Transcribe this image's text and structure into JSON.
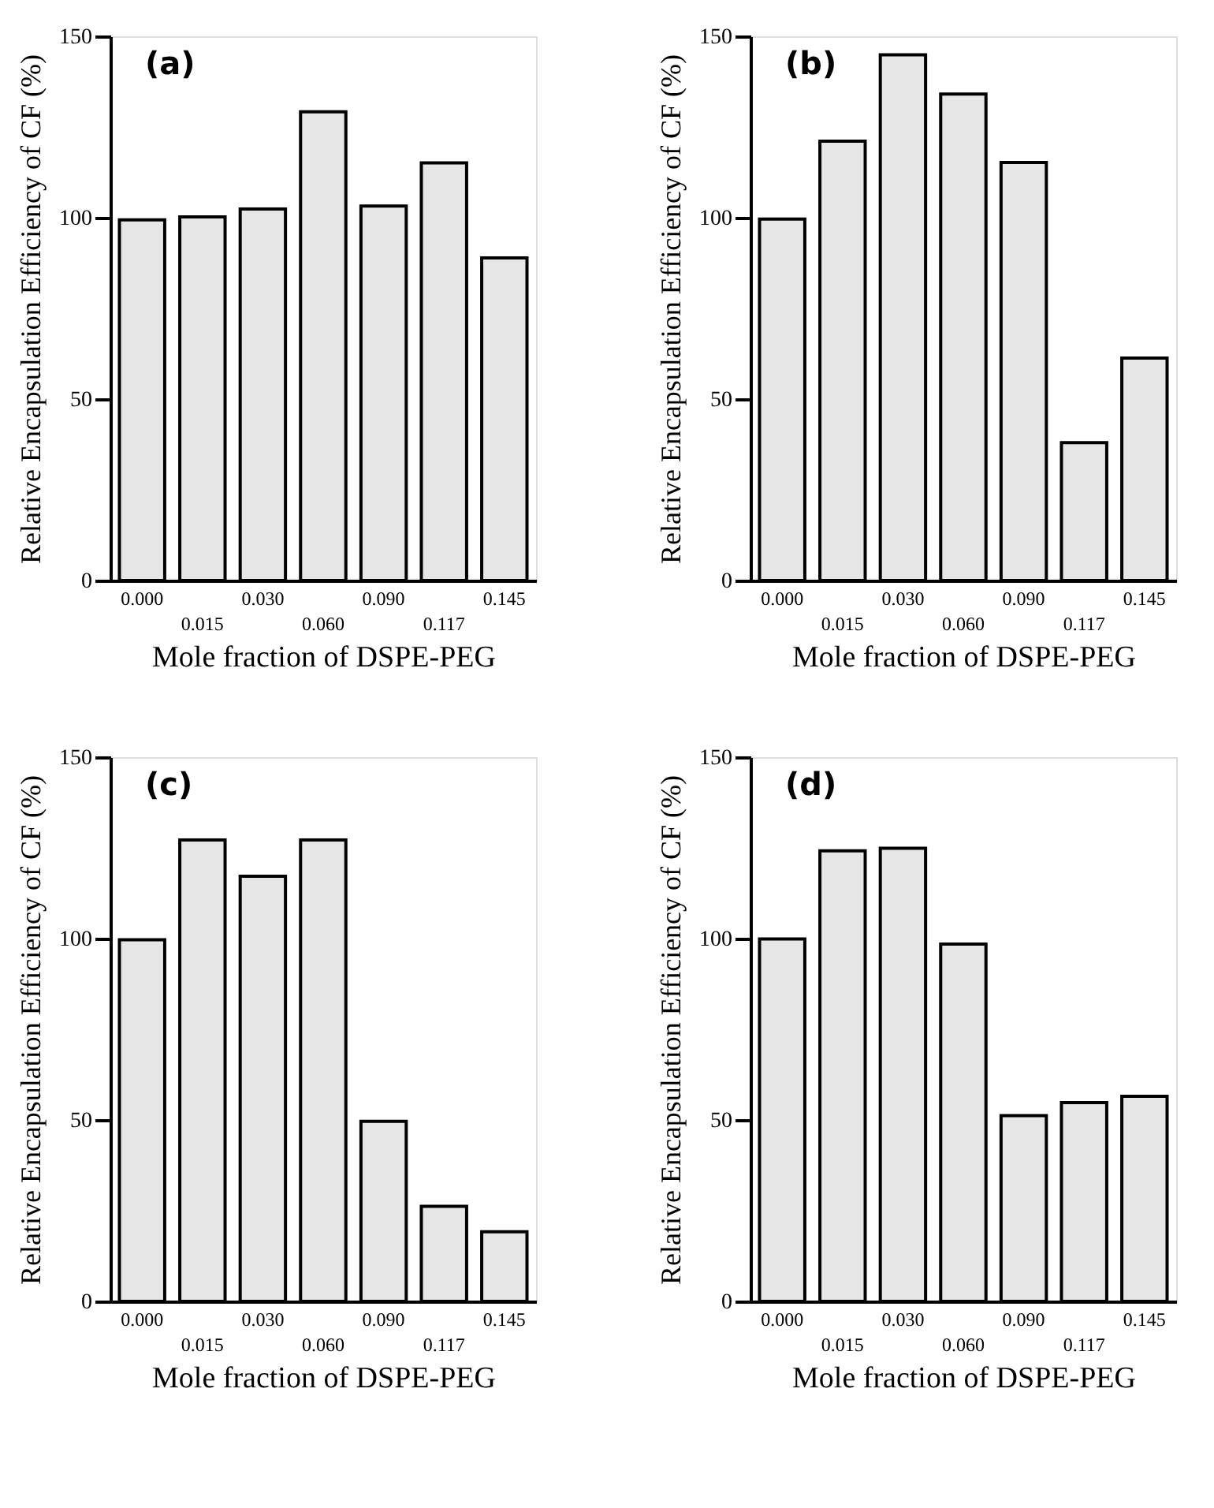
{
  "chart_data": [
    {
      "type": "bar",
      "annotations": [
        "(a)"
      ],
      "categories": [
        "0.000",
        "0.015",
        "0.030",
        "0.060",
        "0.090",
        "0.117",
        "0.145"
      ],
      "values": [
        99.4,
        100.2,
        102.4,
        129.2,
        103.2,
        115.1,
        88.9
      ],
      "color": "#e6e6e6",
      "ylim": [
        0,
        150
      ],
      "yticks": [
        0,
        50,
        100,
        150
      ],
      "xlabel": "Mole fraction of DSPE-PEG",
      "ylabel": "Relative Encapsulation Efficiency of CF (%)",
      "grid": false
    },
    {
      "type": "bar",
      "annotations": [
        "(b)"
      ],
      "categories": [
        "0.000",
        "0.015",
        "0.030",
        "0.060",
        "0.090",
        "0.117",
        "0.145"
      ],
      "values": [
        99.6,
        121.1,
        144.9,
        134.1,
        115.2,
        38.0,
        61.3
      ],
      "color": "#e6e6e6",
      "ylim": [
        0,
        150
      ],
      "yticks": [
        0,
        50,
        100,
        150
      ],
      "xlabel": "Mole fraction of DSPE-PEG",
      "ylabel": "Relative Encapsulation Efficiency of CF (%)",
      "grid": false
    },
    {
      "type": "bar",
      "annotations": [
        "(c)"
      ],
      "categories": [
        "0.000",
        "0.015",
        "0.030",
        "0.060",
        "0.090",
        "0.117",
        "0.145"
      ],
      "values": [
        99.7,
        127.2,
        117.2,
        127.2,
        49.6,
        26.2,
        19.2
      ],
      "color": "#e6e6e6",
      "ylim": [
        0,
        150
      ],
      "yticks": [
        0,
        50,
        100,
        150
      ],
      "xlabel": "Mole fraction of DSPE-PEG",
      "ylabel": "Relative Encapsulation Efficiency of CF (%)",
      "grid": false
    },
    {
      "type": "bar",
      "annotations": [
        "(d)"
      ],
      "categories": [
        "0.000",
        "0.015",
        "0.030",
        "0.060",
        "0.090",
        "0.117",
        "0.145"
      ],
      "values": [
        99.9,
        124.2,
        124.9,
        98.5,
        51.2,
        54.8,
        56.5
      ],
      "color": "#e6e6e6",
      "ylim": [
        0,
        150
      ],
      "yticks": [
        0,
        50,
        100,
        150
      ],
      "xlabel": "Mole fraction of DSPE-PEG",
      "ylabel": "Relative Encapsulation Efficiency of CF (%)",
      "grid": false
    }
  ]
}
